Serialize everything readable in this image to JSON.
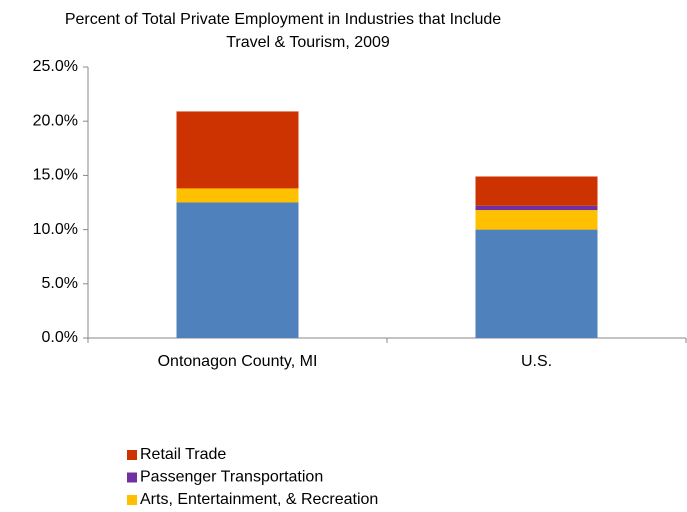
{
  "chart_data": {
    "type": "stacked_bar",
    "title": [
      "Percent of Total Private Employment in Industries that Include",
      "Travel & Tourism, 2009"
    ],
    "categories": [
      "Ontonagon County, MI",
      "U.S."
    ],
    "series": [
      {
        "name": null,
        "color": "#4f81bd",
        "values": [
          12.5,
          10.0
        ]
      },
      {
        "name": "Arts, Entertainment, & Recreation",
        "color": "#ffc000",
        "values": [
          1.3,
          1.8
        ]
      },
      {
        "name": "Passenger Transportation",
        "color": "#7030a0",
        "values": [
          0,
          0.4
        ]
      },
      {
        "name": "Retail Trade",
        "color": "#cc3300",
        "values": [
          7.1,
          2.7
        ]
      }
    ],
    "ylim": [
      0,
      25
    ],
    "yticks": [
      {
        "value": 0,
        "label": "0.0%"
      },
      {
        "value": 5,
        "label": "5.0%"
      },
      {
        "value": 10,
        "label": "10.0%"
      },
      {
        "value": 15,
        "label": "15.0%"
      },
      {
        "value": 20,
        "label": "20.0%"
      },
      {
        "value": 25,
        "label": "25.0%"
      }
    ],
    "grid": false
  }
}
